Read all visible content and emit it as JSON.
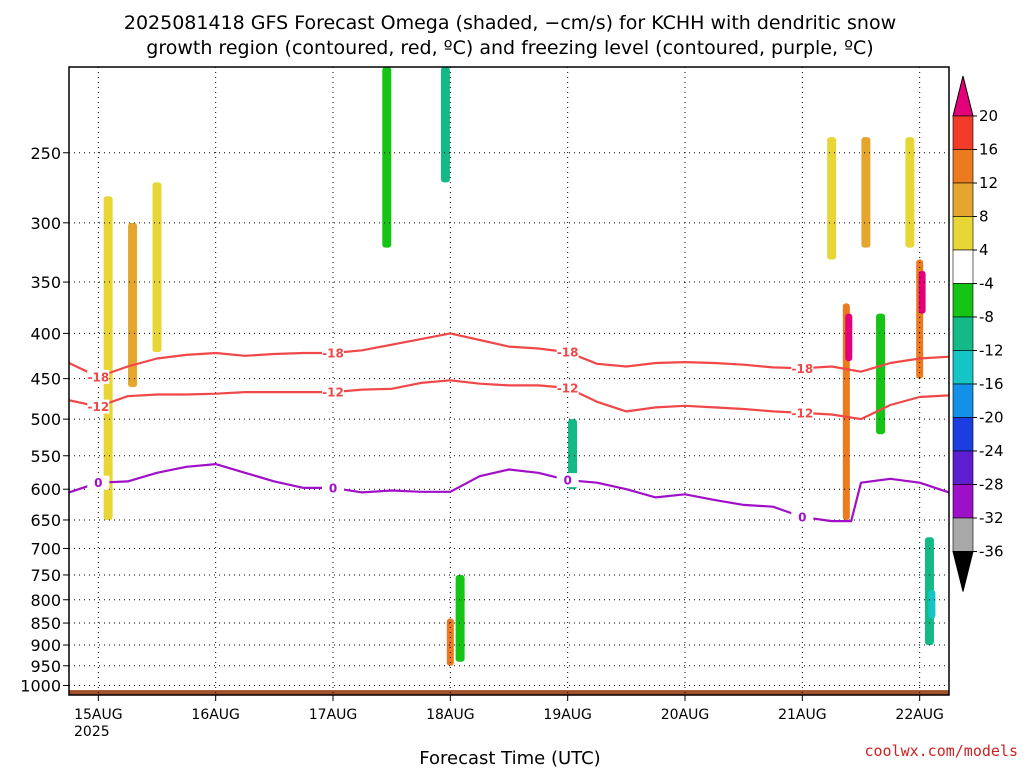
{
  "title_line1": "2025081418 GFS Forecast Omega (shaded, −cm/s) for KCHH with dendritic snow",
  "title_line2": "growth region (contoured, red, ºC) and freezing level (contoured, purple, ºC)",
  "xlabel": "Forecast Time (UTC)",
  "credit": "coolwx.com/models",
  "year_label": "2025",
  "chart_data": {
    "type": "heatmap",
    "title": "2025081418 GFS Forecast Omega (shaded, −cm/s) for KCHH with dendritic snow growth region (contoured, red, ºC) and freezing level (contoured, purple, ºC)",
    "xlabel": "Forecast Time (UTC)",
    "ylabel": "",
    "x_tick_labels": [
      "15AUG",
      "16AUG",
      "17AUG",
      "18AUG",
      "19AUG",
      "20AUG",
      "21AUG",
      "22AUG"
    ],
    "x_tick_hours": [
      6,
      30,
      54,
      78,
      102,
      126,
      150,
      174
    ],
    "x_range_hours": [
      0,
      180
    ],
    "y_tick_labels": [
      "250",
      "300",
      "350",
      "400",
      "450",
      "500",
      "550",
      "600",
      "650",
      "700",
      "750",
      "800",
      "850",
      "900",
      "950",
      "1000"
    ],
    "y_tick_values": [
      250,
      300,
      350,
      400,
      450,
      500,
      550,
      600,
      650,
      700,
      750,
      800,
      850,
      900,
      950,
      1000
    ],
    "y_range": [
      200,
      1025
    ],
    "y_scale": "log",
    "y_inverted": true,
    "grid": true,
    "colorbar": {
      "tick_labels": [
        "20",
        "16",
        "12",
        "8",
        "4",
        "-4",
        "-8",
        "-12",
        "-16",
        "-20",
        "-24",
        "-28",
        "-32",
        "-36"
      ],
      "levels": [
        24,
        20,
        16,
        12,
        8,
        4,
        -4,
        -8,
        -12,
        -16,
        -20,
        -24,
        -28,
        -32,
        -36
      ],
      "colors": [
        "#e3007a",
        "#f03c28",
        "#ec7a1e",
        "#e5a62d",
        "#e8d636",
        "#ffffff",
        "#15c415",
        "#13ba87",
        "#15c5c6",
        "#1590e8",
        "#1c3ee0",
        "#5d1ed0",
        "#9e10c8",
        "#a8a8a8"
      ],
      "over_color": "#e3007a",
      "under_color": "#000000"
    },
    "series": [
      {
        "label": "-18",
        "color": "#f04848",
        "x": [
          0,
          6,
          12,
          18,
          24,
          30,
          36,
          42,
          48,
          54,
          60,
          66,
          72,
          78,
          84,
          90,
          96,
          102,
          108,
          114,
          120,
          126,
          132,
          138,
          144,
          150,
          156,
          162,
          168,
          174,
          180
        ],
        "y": [
          432,
          448,
          436,
          427,
          423,
          421,
          424,
          422,
          421,
          421,
          418,
          412,
          406,
          400,
          407,
          414,
          416,
          420,
          433,
          436,
          432,
          431,
          432,
          434,
          437,
          438,
          436,
          442,
          432,
          427,
          425
        ]
      },
      {
        "label": "-12",
        "color": "#f04848",
        "x": [
          0,
          6,
          12,
          18,
          24,
          30,
          36,
          42,
          48,
          54,
          60,
          66,
          72,
          78,
          84,
          90,
          96,
          102,
          108,
          114,
          120,
          126,
          132,
          138,
          144,
          150,
          156,
          162,
          168,
          174,
          180
        ],
        "y": [
          476,
          484,
          471,
          469,
          469,
          468,
          466,
          466,
          466,
          466,
          463,
          462,
          455,
          452,
          456,
          458,
          458,
          461,
          478,
          490,
          485,
          483,
          485,
          487,
          490,
          492,
          494,
          500,
          482,
          472,
          470
        ]
      },
      {
        "label": "0",
        "color": "#a010c8",
        "x": [
          0,
          6,
          12,
          18,
          24,
          30,
          36,
          42,
          48,
          54,
          60,
          66,
          72,
          78,
          84,
          90,
          96,
          102,
          108,
          114,
          120,
          126,
          132,
          138,
          144,
          150,
          156,
          160,
          162,
          168,
          174,
          180
        ],
        "y": [
          605,
          590,
          588,
          575,
          566,
          562,
          575,
          588,
          598,
          598,
          605,
          602,
          604,
          604,
          580,
          570,
          575,
          586,
          590,
          600,
          613,
          608,
          617,
          625,
          628,
          645,
          652,
          652,
          590,
          584,
          590,
          605
        ]
      }
    ],
    "shading_blobs": [
      {
        "t": 8,
        "p": [
          280,
          650
        ],
        "omega": 6
      },
      {
        "t": 13,
        "p": [
          300,
          460
        ],
        "omega": 10
      },
      {
        "t": 18,
        "p": [
          270,
          420
        ],
        "omega": 5
      },
      {
        "t": 65,
        "p": [
          200,
          320
        ],
        "omega": -6
      },
      {
        "t": 77,
        "p": [
          200,
          270
        ],
        "omega": -10
      },
      {
        "t": 78,
        "p": [
          840,
          950
        ],
        "omega": 14
      },
      {
        "t": 80,
        "p": [
          750,
          940
        ],
        "omega": -6
      },
      {
        "t": 103,
        "p": [
          500,
          600
        ],
        "omega": -8
      },
      {
        "t": 156,
        "p": [
          240,
          330
        ],
        "omega": 6
      },
      {
        "t": 159,
        "p": [
          370,
          650
        ],
        "omega": 16
      },
      {
        "t": 159.5,
        "p": [
          380,
          430
        ],
        "omega": 22
      },
      {
        "t": 163,
        "p": [
          240,
          320
        ],
        "omega": 10
      },
      {
        "t": 166,
        "p": [
          380,
          520
        ],
        "omega": -6
      },
      {
        "t": 172,
        "p": [
          240,
          320
        ],
        "omega": 8
      },
      {
        "t": 174,
        "p": [
          330,
          450
        ],
        "omega": 16
      },
      {
        "t": 174.5,
        "p": [
          340,
          380
        ],
        "omega": 22
      },
      {
        "t": 176,
        "p": [
          680,
          900
        ],
        "omega": -8
      },
      {
        "t": 176.5,
        "p": [
          780,
          840
        ],
        "omega": -14
      }
    ]
  }
}
